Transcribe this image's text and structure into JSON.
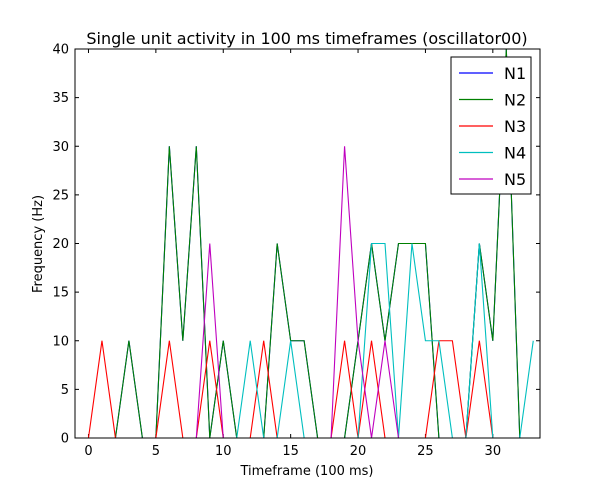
{
  "chart_data": {
    "type": "line",
    "title": "Single unit activity in 100 ms timeframes (oscillator00)",
    "xlabel": "Timeframe (100 ms)",
    "ylabel": "Frequency (Hz)",
    "xlim": [
      -1,
      33.5
    ],
    "ylim": [
      0,
      40
    ],
    "xticks": [
      0,
      5,
      10,
      15,
      20,
      25,
      30
    ],
    "yticks": [
      0,
      5,
      10,
      15,
      20,
      25,
      30,
      35,
      40
    ],
    "grid": false,
    "legend_position": "top-right",
    "x": [
      0,
      1,
      2,
      3,
      4,
      5,
      6,
      7,
      8,
      9,
      10,
      11,
      12,
      13,
      14,
      15,
      16,
      17,
      18,
      19,
      20,
      21,
      22,
      23,
      24,
      25,
      26,
      27,
      28,
      29,
      30,
      31,
      32,
      33
    ],
    "series": [
      {
        "name": "N1",
        "color": "#0000ff",
        "values": [
          0,
          0,
          0,
          10,
          0,
          0,
          30,
          10,
          30,
          0,
          10,
          0,
          0,
          0,
          20,
          10,
          10,
          0,
          0,
          0,
          10,
          20,
          10,
          20,
          20,
          20,
          0,
          0,
          0,
          20,
          10,
          40,
          0,
          0
        ]
      },
      {
        "name": "N2",
        "color": "#008000",
        "values": [
          0,
          0,
          0,
          10,
          0,
          0,
          30,
          10,
          30,
          0,
          10,
          0,
          0,
          0,
          20,
          10,
          10,
          0,
          0,
          0,
          10,
          20,
          10,
          20,
          20,
          20,
          0,
          0,
          0,
          20,
          10,
          40,
          0,
          0
        ]
      },
      {
        "name": "N3",
        "color": "#ff0000",
        "values": [
          0,
          10,
          0,
          0,
          0,
          0,
          10,
          0,
          0,
          10,
          0,
          0,
          0,
          10,
          0,
          0,
          0,
          0,
          0,
          10,
          0,
          10,
          0,
          0,
          0,
          0,
          10,
          10,
          0,
          10,
          0,
          0,
          0,
          0
        ]
      },
      {
        "name": "N4",
        "color": "#00bfbf",
        "values": [
          0,
          0,
          0,
          0,
          0,
          0,
          0,
          0,
          0,
          0,
          0,
          0,
          10,
          0,
          0,
          10,
          0,
          0,
          0,
          0,
          0,
          20,
          20,
          0,
          20,
          10,
          10,
          0,
          0,
          20,
          0,
          0,
          0,
          10
        ]
      },
      {
        "name": "N5",
        "color": "#bf00bf",
        "values": [
          0,
          0,
          0,
          0,
          0,
          0,
          0,
          0,
          0,
          20,
          0,
          0,
          0,
          0,
          0,
          0,
          0,
          0,
          0,
          30,
          10,
          0,
          10,
          0,
          0,
          0,
          0,
          0,
          0,
          0,
          0,
          0,
          0,
          0
        ]
      }
    ]
  }
}
